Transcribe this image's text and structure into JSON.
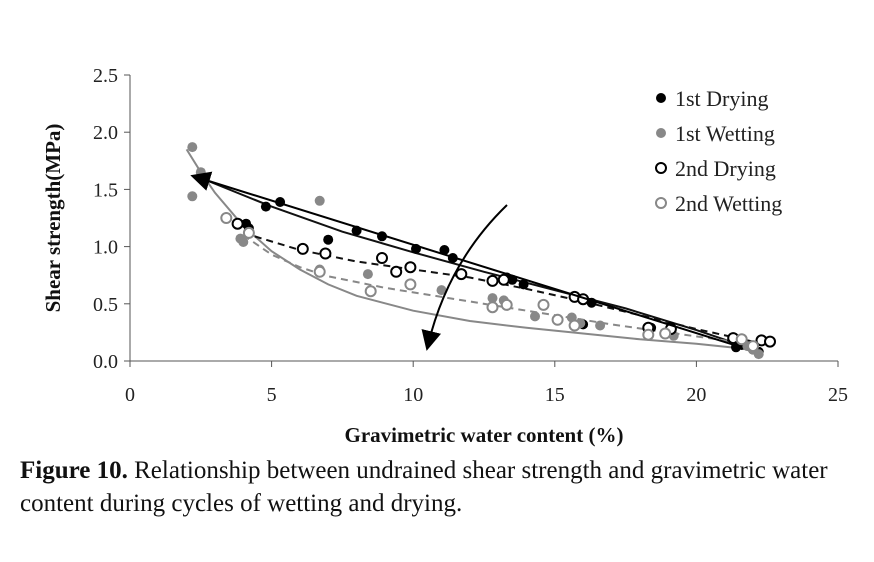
{
  "chart_data": {
    "type": "scatter",
    "xlabel": "Gravimetric water content (%)",
    "ylabel": "Shear strength(MPa)",
    "xlim": [
      0,
      25
    ],
    "ylim": [
      0,
      2.5
    ],
    "xticks": [
      "0",
      "5",
      "10",
      "15",
      "20",
      "25"
    ],
    "yticks": [
      "0.0",
      "0.5",
      "1.0",
      "1.5",
      "2.0",
      "2.5"
    ],
    "grid": false,
    "legend_position": "top-right",
    "series": [
      {
        "name": "1st Drying",
        "color": "#000000",
        "marker": "filled",
        "points": [
          [
            4.1,
            1.2
          ],
          [
            4.2,
            1.16
          ],
          [
            4.8,
            1.35
          ],
          [
            5.3,
            1.39
          ],
          [
            7.0,
            1.06
          ],
          [
            8.0,
            1.14
          ],
          [
            8.9,
            1.09
          ],
          [
            10.1,
            0.98
          ],
          [
            11.1,
            0.97
          ],
          [
            11.4,
            0.9
          ],
          [
            13.3,
            0.73
          ],
          [
            13.5,
            0.71
          ],
          [
            13.9,
            0.67
          ],
          [
            16.0,
            0.32
          ],
          [
            16.3,
            0.51
          ],
          [
            18.4,
            0.29
          ],
          [
            19.1,
            0.3
          ],
          [
            21.4,
            0.12
          ],
          [
            21.6,
            0.14
          ],
          [
            22.0,
            0.1
          ],
          [
            22.2,
            0.08
          ]
        ],
        "trend": [
          [
            2.5,
            1.6
          ],
          [
            5,
            1.35
          ],
          [
            7.5,
            1.13
          ],
          [
            10,
            0.95
          ],
          [
            12.5,
            0.78
          ],
          [
            15,
            0.62
          ],
          [
            17.5,
            0.46
          ],
          [
            20,
            0.27
          ],
          [
            21.8,
            0.12
          ]
        ],
        "trend_style": "solid"
      },
      {
        "name": "1st Wetting",
        "color": "#888888",
        "marker": "filled",
        "points": [
          [
            2.2,
            1.87
          ],
          [
            2.2,
            1.44
          ],
          [
            2.5,
            1.65
          ],
          [
            3.9,
            1.07
          ],
          [
            4.0,
            1.04
          ],
          [
            6.7,
            1.4
          ],
          [
            6.7,
            0.8
          ],
          [
            8.4,
            0.76
          ],
          [
            11.0,
            0.62
          ],
          [
            12.8,
            0.55
          ],
          [
            13.2,
            0.53
          ],
          [
            14.3,
            0.39
          ],
          [
            15.6,
            0.38
          ],
          [
            15.9,
            0.33
          ],
          [
            16.6,
            0.31
          ],
          [
            18.3,
            0.25
          ],
          [
            19.2,
            0.22
          ],
          [
            21.8,
            0.13
          ],
          [
            22.0,
            0.1
          ],
          [
            22.2,
            0.06
          ]
        ],
        "trend": [
          [
            2.0,
            1.85
          ],
          [
            2.5,
            1.65
          ],
          [
            3,
            1.47
          ],
          [
            4,
            1.18
          ],
          [
            5,
            0.96
          ],
          [
            6,
            0.8
          ],
          [
            7,
            0.67
          ],
          [
            8,
            0.57
          ],
          [
            10,
            0.44
          ],
          [
            12,
            0.35
          ],
          [
            14,
            0.29
          ],
          [
            16,
            0.24
          ],
          [
            18,
            0.19
          ],
          [
            20,
            0.15
          ],
          [
            22,
            0.1
          ]
        ],
        "trend_style": "solid"
      },
      {
        "name": "2nd Drying",
        "color": "#000000",
        "marker": "hollow",
        "points": [
          [
            3.8,
            1.2
          ],
          [
            6.1,
            0.98
          ],
          [
            6.9,
            0.94
          ],
          [
            8.9,
            0.9
          ],
          [
            9.4,
            0.78
          ],
          [
            9.9,
            0.82
          ],
          [
            11.7,
            0.76
          ],
          [
            12.8,
            0.7
          ],
          [
            13.2,
            0.71
          ],
          [
            15.7,
            0.56
          ],
          [
            16.0,
            0.54
          ],
          [
            18.3,
            0.29
          ],
          [
            19.1,
            0.28
          ],
          [
            21.3,
            0.2
          ],
          [
            22.3,
            0.18
          ],
          [
            22.6,
            0.17
          ]
        ],
        "trend": [
          [
            4,
            1.12
          ],
          [
            6,
            0.97
          ],
          [
            8,
            0.87
          ],
          [
            10,
            0.8
          ],
          [
            12,
            0.73
          ],
          [
            14,
            0.63
          ],
          [
            16,
            0.52
          ],
          [
            18,
            0.4
          ],
          [
            20,
            0.28
          ],
          [
            22,
            0.17
          ]
        ],
        "trend_style": "dashed"
      },
      {
        "name": "2nd Wetting",
        "color": "#888888",
        "marker": "hollow",
        "points": [
          [
            3.4,
            1.25
          ],
          [
            4.2,
            1.12
          ],
          [
            6.7,
            0.78
          ],
          [
            8.5,
            0.61
          ],
          [
            9.9,
            0.67
          ],
          [
            12.8,
            0.47
          ],
          [
            13.3,
            0.49
          ],
          [
            14.6,
            0.49
          ],
          [
            15.1,
            0.36
          ],
          [
            15.7,
            0.31
          ],
          [
            18.3,
            0.23
          ],
          [
            18.9,
            0.24
          ],
          [
            21.6,
            0.19
          ],
          [
            22.0,
            0.13
          ]
        ],
        "trend": [
          [
            4,
            1.1
          ],
          [
            5,
            0.93
          ],
          [
            6,
            0.82
          ],
          [
            7,
            0.74
          ],
          [
            9,
            0.64
          ],
          [
            11,
            0.56
          ],
          [
            13,
            0.48
          ],
          [
            15,
            0.4
          ],
          [
            17,
            0.32
          ],
          [
            19,
            0.25
          ],
          [
            21,
            0.18
          ],
          [
            22.2,
            0.15
          ]
        ],
        "trend_style": "dashed"
      }
    ]
  },
  "caption": {
    "lead": "Figure 10.",
    "text": " Relationship between undrained shear strength and gravimetric water content during cycles of wetting and drying."
  }
}
